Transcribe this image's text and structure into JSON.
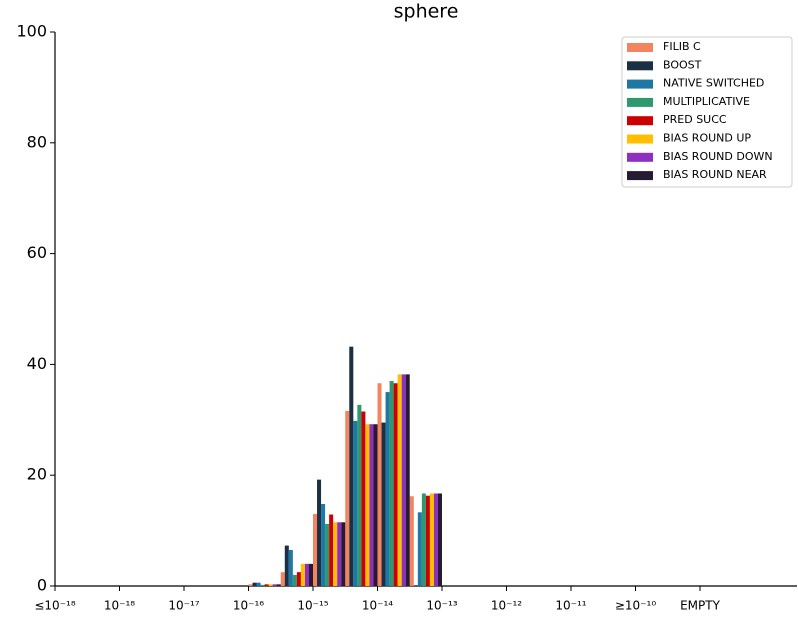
{
  "chart_data": {
    "type": "bar",
    "title": "sphere",
    "categories": [
      "≤10⁻¹⁸",
      null,
      "10⁻¹⁸",
      null,
      "10⁻¹⁷",
      null,
      "10⁻¹⁶",
      null,
      "10⁻¹⁵",
      null,
      "10⁻¹⁴",
      null,
      "10⁻¹³",
      null,
      "10⁻¹²",
      null,
      "10⁻¹¹",
      null,
      "≥10⁻¹⁰",
      null,
      "EMPTY",
      null
    ],
    "series": [
      {
        "name": "FILIB C",
        "color": "#f4845f",
        "values": [
          0,
          0,
          0,
          0,
          0,
          0,
          0.3,
          2.5,
          13,
          31.6,
          36.6,
          16.2,
          0,
          0,
          0,
          0,
          0,
          0,
          0,
          0,
          0,
          0
        ]
      },
      {
        "name": "BOOST",
        "color": "#1b2f45",
        "values": [
          0,
          0,
          0,
          0,
          0,
          0,
          0.6,
          7.3,
          19.2,
          43.2,
          29.5,
          0,
          0,
          0,
          0,
          0,
          0,
          0,
          0,
          0,
          0,
          0
        ]
      },
      {
        "name": "NATIVE SWITCHED",
        "color": "#1f77a4",
        "values": [
          0,
          0,
          0,
          0,
          0,
          0,
          0.6,
          6.5,
          14.8,
          29.8,
          35,
          13.3,
          0,
          0,
          0,
          0,
          0,
          0,
          0,
          0,
          0,
          0
        ]
      },
      {
        "name": "MULTIPLICATIVE",
        "color": "#2e9970",
        "values": [
          0,
          0,
          0,
          0,
          0,
          0,
          0.2,
          2,
          11.2,
          32.7,
          37,
          16.7,
          0,
          0,
          0,
          0,
          0,
          0,
          0,
          0,
          0,
          0
        ]
      },
      {
        "name": "PRED SUCC",
        "color": "#cc0000",
        "values": [
          0,
          0,
          0,
          0,
          0,
          0,
          0.3,
          2.5,
          12.9,
          31.5,
          36.6,
          16.3,
          0,
          0,
          0,
          0,
          0,
          0,
          0,
          0,
          0,
          0
        ]
      },
      {
        "name": "BIAS ROUND UP",
        "color": "#ffbf00",
        "values": [
          0,
          0,
          0,
          0,
          0,
          0,
          0.3,
          4,
          11.5,
          29.2,
          38.2,
          16.7,
          0,
          0,
          0,
          0,
          0,
          0,
          0,
          0,
          0,
          0
        ]
      },
      {
        "name": "BIAS ROUND DOWN",
        "color": "#8e2fc0",
        "values": [
          0,
          0,
          0,
          0,
          0,
          0,
          0.3,
          4,
          11.5,
          29.2,
          38.2,
          16.7,
          0,
          0,
          0,
          0,
          0,
          0,
          0,
          0,
          0,
          0
        ]
      },
      {
        "name": "BIAS ROUND NEAR",
        "color": "#271a33",
        "values": [
          0,
          0,
          0,
          0,
          0,
          0,
          0.3,
          4,
          11.5,
          29.2,
          38.2,
          16.7,
          0,
          0,
          0,
          0,
          0,
          0,
          0,
          0,
          0,
          0
        ]
      }
    ],
    "ylim": [
      0,
      100
    ],
    "yticks": [
      0,
      20,
      40,
      60,
      80,
      100
    ],
    "grid": false,
    "legend": "upper right"
  }
}
